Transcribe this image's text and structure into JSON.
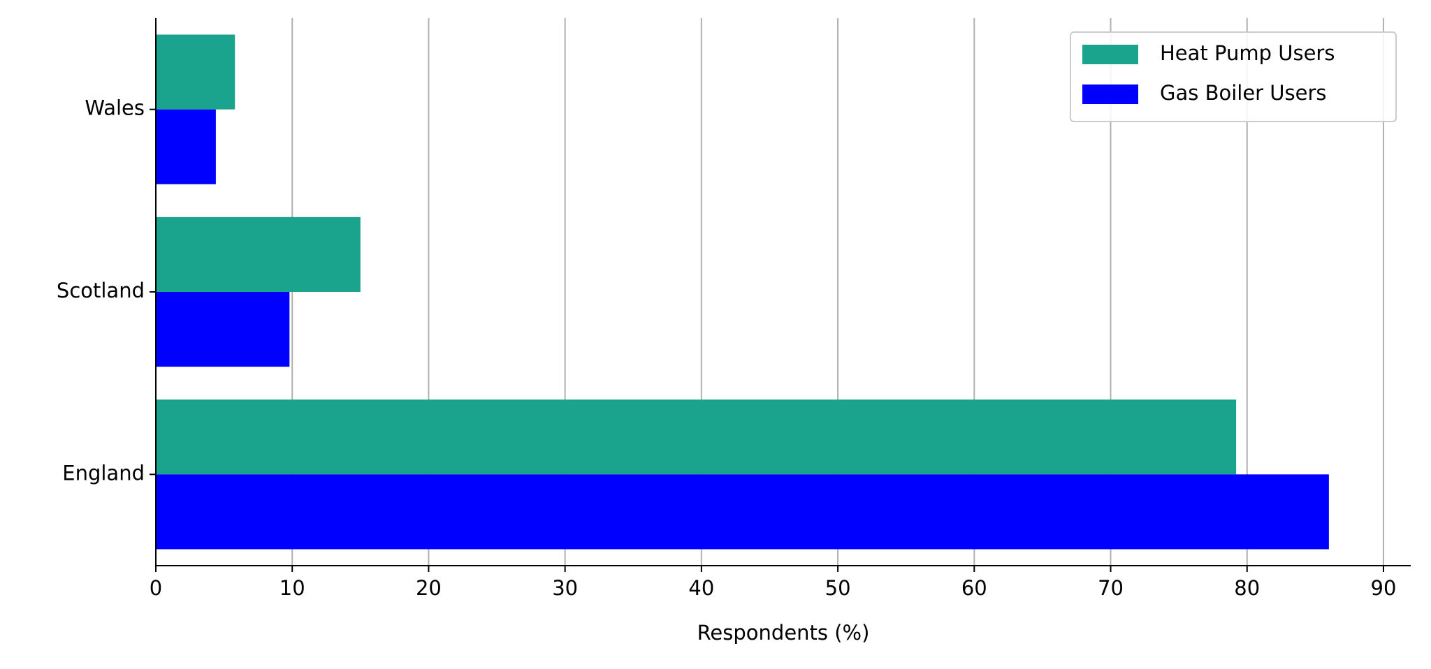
{
  "chart_data": {
    "type": "barh",
    "categories": [
      "Wales",
      "Scotland",
      "England"
    ],
    "series": [
      {
        "name": "Heat Pump Users",
        "color": "#1aa38d",
        "values": [
          5.8,
          15.0,
          79.2
        ]
      },
      {
        "name": "Gas Boiler Users",
        "color": "#0000ff",
        "values": [
          4.4,
          9.8,
          86.0
        ]
      }
    ],
    "xlabel": "Respondents (%)",
    "xlim": [
      0,
      92
    ],
    "xticks": [
      0,
      10,
      20,
      30,
      40,
      50,
      60,
      70,
      80,
      90
    ],
    "grid": true,
    "legend": "upper right"
  }
}
